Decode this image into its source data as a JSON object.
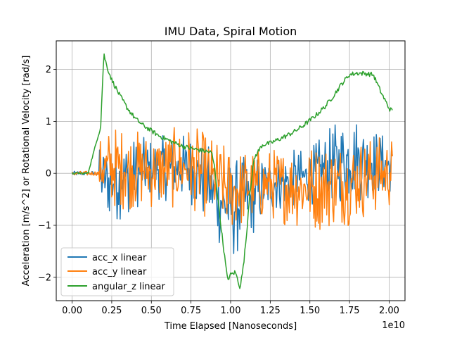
{
  "chart_data": {
    "type": "line",
    "title": "IMU Data, Spiral  Motion",
    "xlabel": "Time Elapsed [Nanoseconds]",
    "ylabel": "Acceleration [m/s^2] or Rotational Velocity [rad/s]",
    "x_offset_label": "1e10",
    "xlim": [
      -0.1,
      2.1
    ],
    "ylim": [
      -2.45,
      2.55
    ],
    "x_ticks": [
      0.0,
      0.25,
      0.5,
      0.75,
      1.0,
      1.25,
      1.5,
      1.75,
      2.0
    ],
    "x_tick_labels": [
      "0.00",
      "0.25",
      "0.50",
      "0.75",
      "1.00",
      "1.25",
      "1.50",
      "1.75",
      "2.00"
    ],
    "y_ticks": [
      -2,
      -1,
      0,
      1,
      2
    ],
    "y_tick_labels": [
      "−2",
      "−1",
      "0",
      "1",
      "2"
    ],
    "grid": true,
    "legend_position": "lower-left",
    "series": [
      {
        "name": "acc_x linear",
        "color": "#1f77b4",
        "x": [
          0.0,
          0.25,
          0.5,
          0.75,
          1.0,
          1.25,
          1.5,
          1.75,
          2.0
        ],
        "y_envelope_min": [
          -0.05,
          -1.0,
          -0.5,
          -0.6,
          -1.75,
          -0.8,
          -0.6,
          -0.6,
          -0.4
        ],
        "y_envelope_max": [
          0.05,
          0.7,
          0.7,
          0.8,
          0.3,
          0.4,
          0.5,
          1.25,
          0.7
        ]
      },
      {
        "name": "acc_y linear",
        "color": "#ff7f0e",
        "x": [
          0.0,
          0.25,
          0.5,
          0.75,
          1.0,
          1.25,
          1.5,
          1.75,
          2.0
        ],
        "y_envelope_min": [
          -0.05,
          -0.7,
          -0.7,
          -0.7,
          -1.15,
          -0.9,
          -1.15,
          -1.0,
          -0.7
        ],
        "y_envelope_max": [
          0.05,
          0.95,
          0.8,
          0.95,
          0.5,
          0.5,
          0.6,
          0.7,
          0.75
        ]
      },
      {
        "name": "angular_z linear",
        "color": "#2ca02c",
        "x": [
          0.0,
          0.1,
          0.18,
          0.2,
          0.22,
          0.25,
          0.3,
          0.35,
          0.4,
          0.45,
          0.5,
          0.55,
          0.6,
          0.65,
          0.7,
          0.75,
          0.8,
          0.85,
          0.88,
          0.9,
          0.92,
          0.95,
          0.97,
          0.98,
          1.0,
          1.03,
          1.06,
          1.08,
          1.1,
          1.12,
          1.15,
          1.2,
          1.25,
          1.3,
          1.35,
          1.4,
          1.45,
          1.5,
          1.55,
          1.6,
          1.65,
          1.7,
          1.75,
          1.8,
          1.85,
          1.9,
          1.95,
          2.0,
          2.02
        ],
        "y": [
          0.0,
          0.0,
          0.9,
          2.3,
          2.05,
          1.8,
          1.5,
          1.25,
          1.05,
          0.92,
          0.82,
          0.72,
          0.65,
          0.58,
          0.52,
          0.48,
          0.45,
          0.42,
          0.4,
          0.1,
          -0.5,
          -1.3,
          -1.8,
          -2.05,
          -1.95,
          -1.9,
          -2.2,
          -1.8,
          -1.2,
          -0.4,
          0.3,
          0.55,
          0.58,
          0.65,
          0.72,
          0.8,
          0.9,
          1.02,
          1.15,
          1.3,
          1.5,
          1.72,
          1.9,
          1.93,
          1.92,
          1.9,
          1.55,
          1.25,
          1.2
        ]
      }
    ]
  }
}
